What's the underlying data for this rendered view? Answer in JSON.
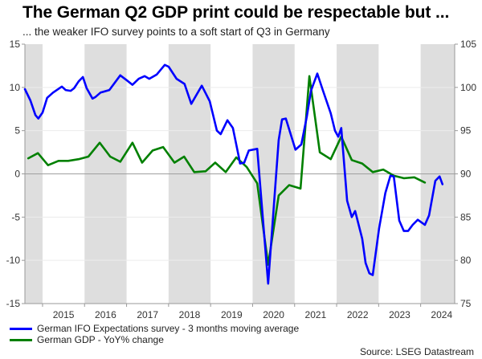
{
  "chart_data": {
    "type": "line",
    "title": "The German Q2 GDP print could be respectable but ...",
    "subtitle": "... the weaker IFO survey points to a soft start of Q3 in Germany",
    "source": "Source: LSEG Datastream",
    "xlabel": "",
    "x_ticks": [
      "2015",
      "2016",
      "2017",
      "2018",
      "2019",
      "2020",
      "2021",
      "2022",
      "2023",
      "2024"
    ],
    "xlim": [
      2014.58,
      2024.81
    ],
    "shaded_years": [
      2014,
      2016,
      2018,
      2020,
      2022,
      2024
    ],
    "left_axis": {
      "ylim": [
        -15,
        15
      ],
      "ticks": [
        15,
        10,
        5,
        0,
        -5,
        -10,
        -15
      ]
    },
    "right_axis": {
      "ylim": [
        75,
        105
      ],
      "ticks": [
        105,
        100,
        95,
        90,
        85,
        80,
        75
      ]
    },
    "grid": true,
    "legend_position": "bottom-left",
    "series": [
      {
        "name": "German IFO Expectations survey - 3 months moving average",
        "axis": "right",
        "color": "#0000ff",
        "x": [
          2014.58,
          2014.71,
          2014.83,
          2014.9,
          2015.0,
          2015.11,
          2015.25,
          2015.46,
          2015.55,
          2015.67,
          2015.75,
          2015.86,
          2015.96,
          2016.05,
          2016.19,
          2016.26,
          2016.38,
          2016.59,
          2016.85,
          2017.01,
          2017.14,
          2017.29,
          2017.43,
          2017.54,
          2017.72,
          2017.91,
          2018.0,
          2018.19,
          2018.38,
          2018.54,
          2018.79,
          2018.98,
          2019.15,
          2019.24,
          2019.4,
          2019.53,
          2019.67,
          2019.7,
          2019.8,
          2019.91,
          2020.11,
          2020.37,
          2020.62,
          2020.7,
          2020.79,
          2021.02,
          2021.16,
          2021.29,
          2021.39,
          2021.54,
          2021.67,
          2021.86,
          2021.96,
          2022.04,
          2022.11,
          2022.25,
          2022.36,
          2022.44,
          2022.61,
          2022.69,
          2022.78,
          2022.86,
          2023.01,
          2023.16,
          2023.28,
          2023.36,
          2023.49,
          2023.6,
          2023.7,
          2023.81,
          2023.93,
          2024.1,
          2024.2,
          2024.35,
          2024.45,
          2024.52
        ],
        "values": [
          99.8,
          98.5,
          96.8,
          96.4,
          97.1,
          98.8,
          99.4,
          100.1,
          99.7,
          99.6,
          99.9,
          100.7,
          101.2,
          99.9,
          98.7,
          98.9,
          99.4,
          99.7,
          101.4,
          100.8,
          100.3,
          101.0,
          101.3,
          101.0,
          101.5,
          102.6,
          102.4,
          101.0,
          100.4,
          98.1,
          100.2,
          98.4,
          95.0,
          94.6,
          96.2,
          95.3,
          92.0,
          91.2,
          91.3,
          92.7,
          92.9,
          77.3,
          93.9,
          96.3,
          96.4,
          92.8,
          93.4,
          96.6,
          99.6,
          101.6,
          99.7,
          97.0,
          95.0,
          94.3,
          95.3,
          86.9,
          85.0,
          85.7,
          82.5,
          79.7,
          78.5,
          78.3,
          83.7,
          87.8,
          89.8,
          89.7,
          84.6,
          83.4,
          83.4,
          84.1,
          84.7,
          84.1,
          85.2,
          89.2,
          89.7,
          88.8
        ]
      },
      {
        "name": "German GDP - YoY% change",
        "axis": "left",
        "color": "#008000",
        "x": [
          2014.66,
          2014.89,
          2015.13,
          2015.38,
          2015.61,
          2015.86,
          2016.09,
          2016.36,
          2016.61,
          2016.85,
          2017.14,
          2017.37,
          2017.62,
          2017.87,
          2018.14,
          2018.37,
          2018.61,
          2018.88,
          2019.11,
          2019.36,
          2019.61,
          2019.86,
          2020.11,
          2020.37,
          2020.62,
          2020.87,
          2021.14,
          2021.35,
          2021.6,
          2021.86,
          2022.11,
          2022.36,
          2022.61,
          2022.86,
          2023.11,
          2023.36,
          2023.6,
          2023.85,
          2024.1
        ],
        "values": [
          1.8,
          2.4,
          1.0,
          1.5,
          1.5,
          1.7,
          2.0,
          3.6,
          2.0,
          1.4,
          3.6,
          1.3,
          2.7,
          3.1,
          1.3,
          2.0,
          0.2,
          0.3,
          1.3,
          0.2,
          1.9,
          0.8,
          -1.1,
          -10.5,
          -2.5,
          -1.3,
          -1.7,
          11.3,
          2.5,
          1.7,
          4.3,
          1.6,
          1.2,
          0.2,
          0.5,
          -0.2,
          -0.5,
          -0.4,
          -1.0
        ]
      }
    ]
  }
}
